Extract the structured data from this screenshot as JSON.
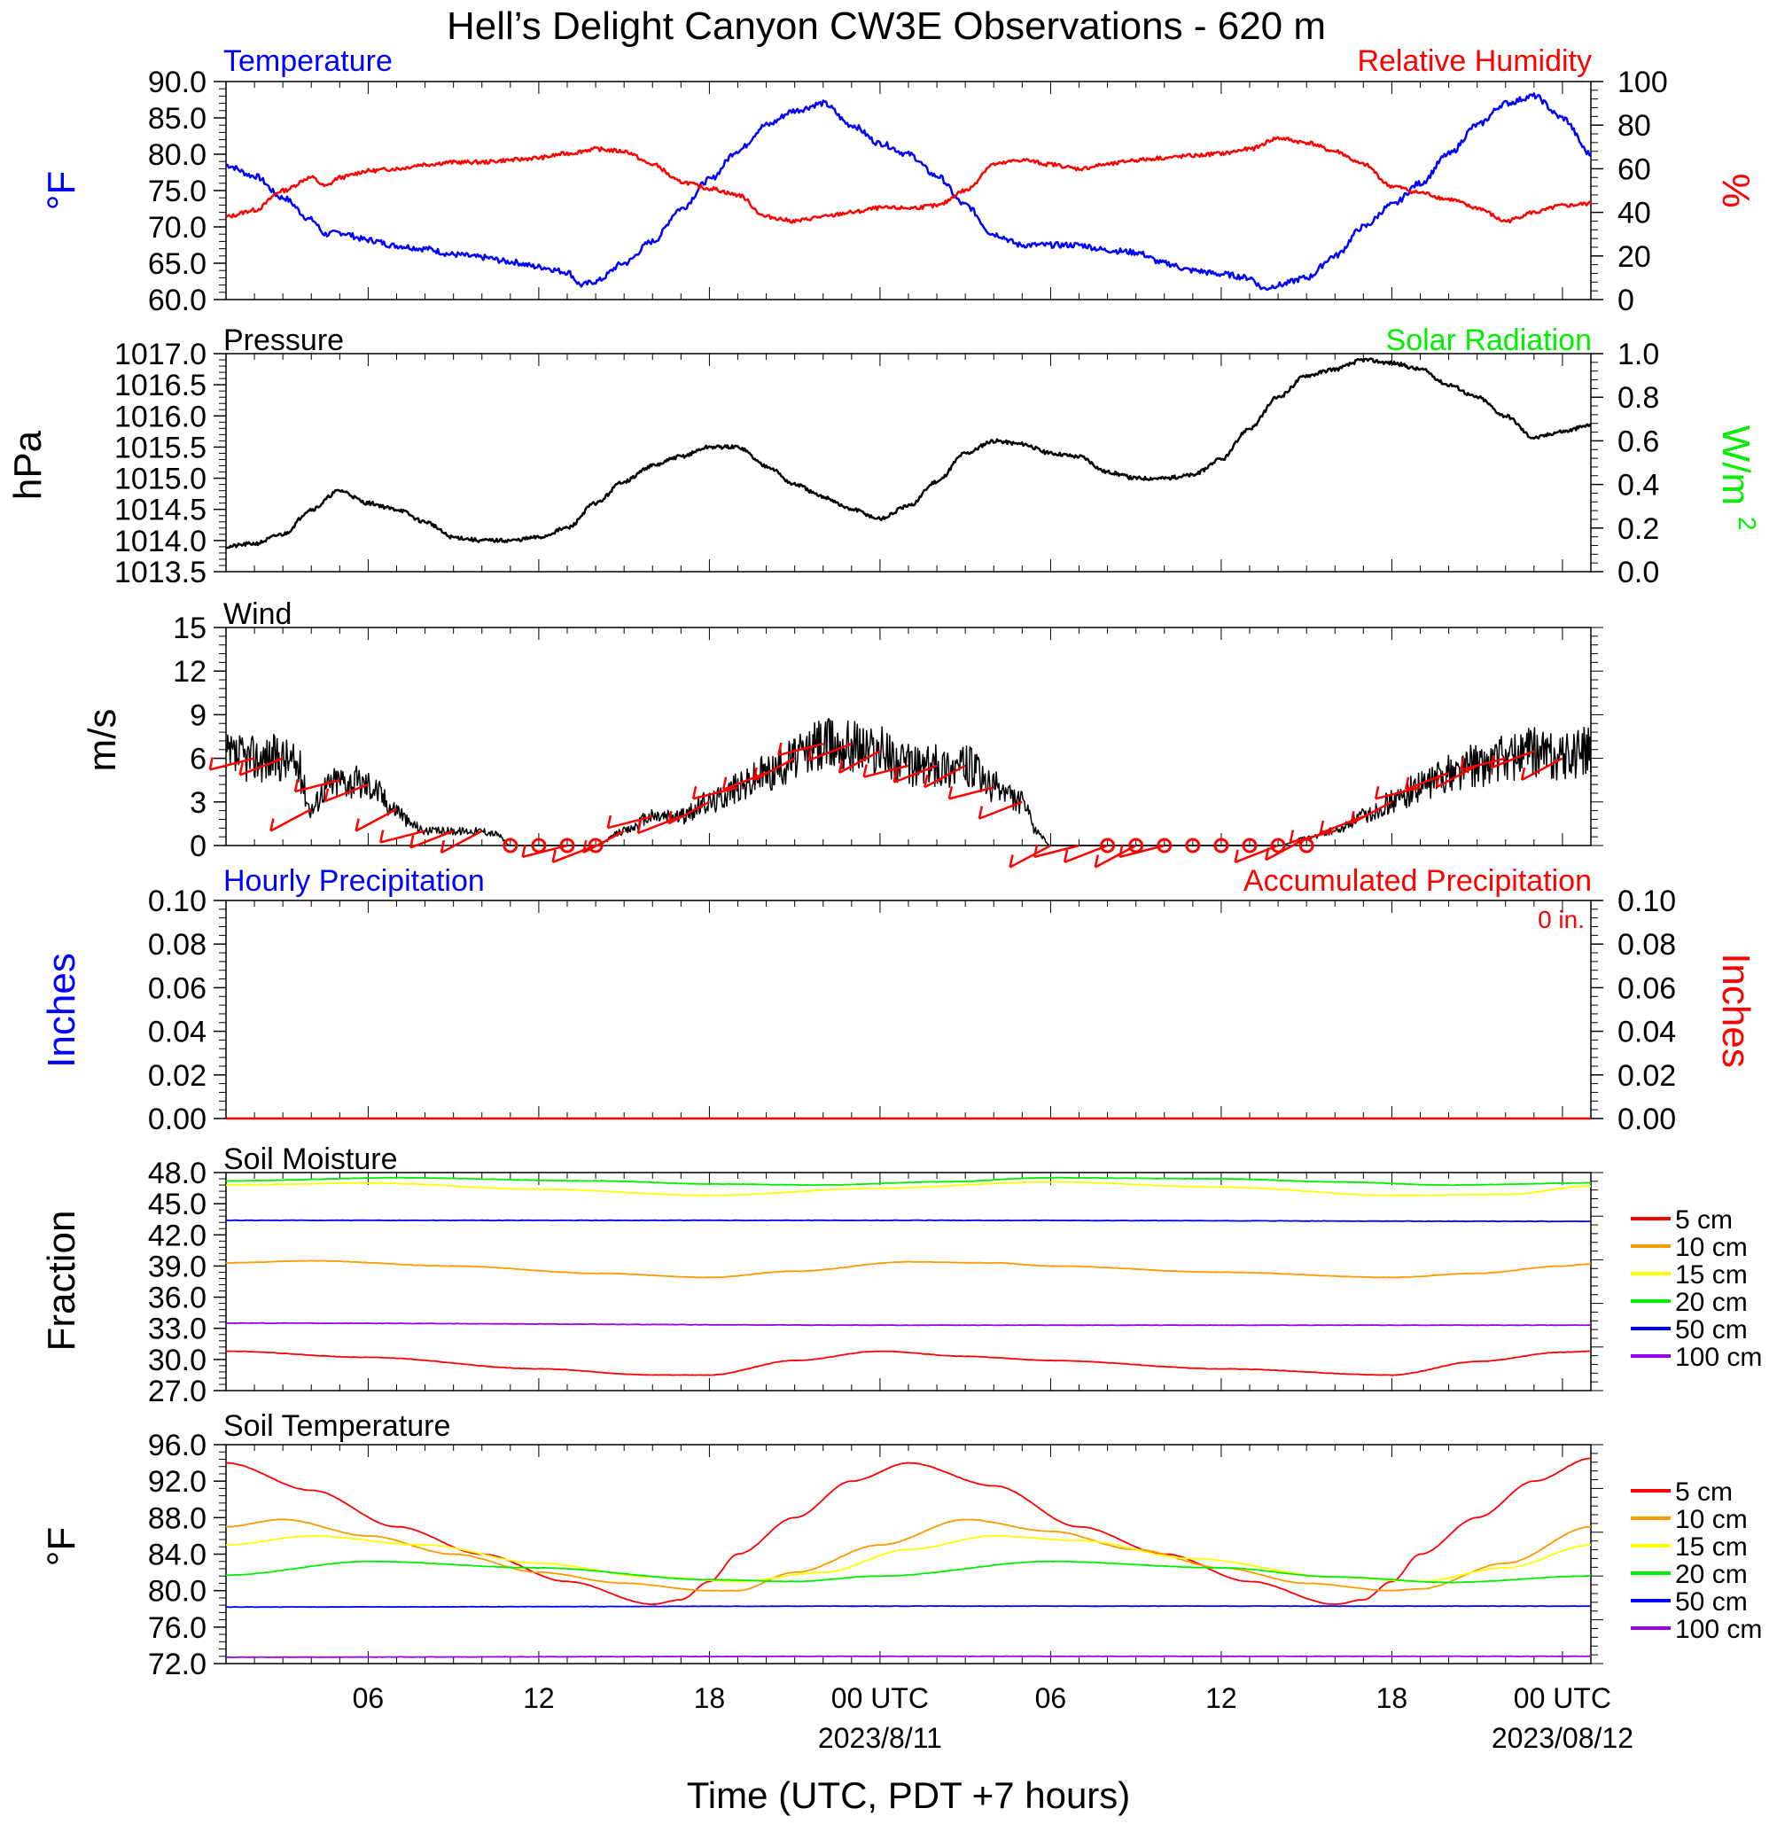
{
  "title": "Hell’s Delight Canyon CW3E Observations - 620 m",
  "xaxis": {
    "label": "Time (UTC, PDT +7 hours)",
    "ticks": [
      "06",
      "12",
      "18",
      "00 UTC",
      "06",
      "12",
      "18",
      "00 UTC"
    ],
    "tick_hours": [
      6,
      12,
      18,
      24,
      30,
      36,
      42,
      48
    ],
    "date_labels": [
      {
        "hour": 24,
        "text": "2023/8/11"
      },
      {
        "hour": 48,
        "text": "2023/08/12"
      }
    ],
    "range_hours": [
      1,
      49
    ]
  },
  "legend": {
    "labels": [
      "5 cm",
      "10 cm",
      "15 cm",
      "20 cm",
      "50 cm",
      "100 cm"
    ],
    "colors": [
      "#ff0000",
      "#ff9900",
      "#ffff00",
      "#00ee00",
      "#0000ff",
      "#9900ee"
    ]
  },
  "panels": {
    "temp": {
      "left_title": "Temperature",
      "right_title": "Relative Humidity",
      "left_unit": "°F",
      "right_unit": "%",
      "left_ticks": [
        "60.0",
        "65.0",
        "70.0",
        "75.0",
        "80.0",
        "85.0",
        "90.0"
      ],
      "right_ticks": [
        "0",
        "20",
        "40",
        "60",
        "80",
        "100"
      ]
    },
    "pressure": {
      "left_title": "Pressure",
      "right_title": "Solar Radiation",
      "left_unit": "hPa",
      "right_unit": "W/m",
      "left_ticks": [
        "1013.5",
        "1014.0",
        "1014.5",
        "1015.0",
        "1015.5",
        "1016.0",
        "1016.5",
        "1017.0"
      ],
      "right_ticks": [
        "0.0",
        "0.2",
        "0.4",
        "0.6",
        "0.8",
        "1.0"
      ]
    },
    "wind": {
      "left_title": "Wind",
      "left_unit": "m/s",
      "left_ticks": [
        "0",
        "3",
        "6",
        "9",
        "12",
        "15"
      ]
    },
    "precip": {
      "left_title": "Hourly Precipitation",
      "right_title": "Accumulated Precipitation",
      "left_unit": "Inches",
      "right_unit": "Inches",
      "accum_total": "0 in.",
      "left_ticks": [
        "0.00",
        "0.02",
        "0.04",
        "0.06",
        "0.08",
        "0.10"
      ],
      "right_ticks": [
        "0.00",
        "0.02",
        "0.04",
        "0.06",
        "0.08",
        "0.10"
      ]
    },
    "soilm": {
      "left_title": "Soil Moisture",
      "left_unit": "Fraction",
      "left_ticks": [
        "27.0",
        "30.0",
        "33.0",
        "36.0",
        "39.0",
        "42.0",
        "45.0",
        "48.0"
      ]
    },
    "soilt": {
      "left_title": "Soil Temperature",
      "left_unit": "°F",
      "left_ticks": [
        "72.0",
        "76.0",
        "80.0",
        "84.0",
        "88.0",
        "92.0",
        "96.0"
      ]
    }
  },
  "colors": {
    "temp": "#0000ff",
    "rh": "#ff0000",
    "pressure": "#000000",
    "solar": "#00ee00",
    "wind": "#000000",
    "barb": "#ff0000",
    "precip": "#ff0000"
  },
  "chart_data": [
    {
      "type": "line",
      "title": "",
      "x_unit": "hours since 2023-08-10 00 UTC",
      "ylim": [
        60,
        90
      ],
      "y2lim": [
        0,
        100
      ],
      "series": [
        {
          "name": "Temperature",
          "axis": "left",
          "x": [
            1,
            2,
            3,
            4,
            4.5,
            5,
            6,
            7,
            8,
            9,
            10,
            11,
            12,
            13,
            13.5,
            14,
            15,
            16,
            17,
            18,
            19,
            20,
            21,
            22,
            23,
            24,
            25,
            26,
            27,
            28,
            29,
            30,
            31,
            32,
            33,
            34,
            35,
            36,
            37,
            37.5,
            38,
            39,
            40,
            41,
            42,
            43,
            44,
            45,
            46,
            47,
            48,
            49
          ],
          "y": [
            78.5,
            77,
            74,
            71,
            69,
            69.2,
            68.2,
            67.4,
            67,
            66.2,
            65.8,
            65.2,
            64.5,
            63.8,
            62,
            62.5,
            65,
            68,
            72.5,
            76.5,
            80.5,
            84,
            86,
            87,
            84,
            81.5,
            80,
            77,
            73,
            69,
            67.5,
            67.5,
            67.5,
            66.8,
            66.5,
            65,
            64,
            63.5,
            63,
            61.5,
            62,
            63,
            66,
            70,
            73,
            76,
            80,
            84,
            87,
            88,
            85,
            80
          ]
        },
        {
          "name": "Relative Humidity",
          "axis": "right",
          "x": [
            1,
            2,
            3,
            4,
            4.5,
            5,
            6,
            7,
            8,
            9,
            10,
            11,
            12,
            13,
            14,
            15,
            16,
            17,
            18,
            19,
            20,
            21,
            22,
            23,
            24,
            25,
            26,
            27,
            28,
            29,
            30,
            31,
            32,
            33,
            34,
            35,
            36,
            37,
            38,
            39,
            40,
            41,
            42,
            43,
            44,
            45,
            46,
            47,
            48,
            49
          ],
          "y": [
            38,
            41,
            50,
            56,
            52,
            56,
            59,
            60,
            62,
            63,
            63,
            64,
            65,
            67,
            69,
            68,
            62,
            54,
            51,
            48,
            38,
            36,
            38,
            40,
            42,
            42,
            43,
            50,
            62,
            64,
            62,
            60,
            62,
            64,
            65,
            66,
            67,
            69,
            74,
            72,
            68,
            62,
            52,
            49,
            46,
            42,
            36,
            40,
            43,
            44
          ]
        }
      ]
    },
    {
      "type": "line",
      "title": "",
      "x_unit": "hours since 2023-08-10 00 UTC",
      "ylim": [
        1013.5,
        1017.0
      ],
      "y2lim": [
        0,
        1
      ],
      "series": [
        {
          "name": "Pressure",
          "axis": "left",
          "x": [
            1,
            2,
            3,
            4,
            5,
            6,
            7,
            8,
            9,
            10,
            11,
            12,
            13,
            14,
            15,
            16,
            17,
            18,
            19,
            20,
            21,
            22,
            23,
            24,
            25,
            26,
            27,
            28,
            29,
            30,
            31,
            32,
            33,
            34,
            35,
            36,
            37,
            38,
            39,
            40,
            41,
            42,
            43,
            44,
            45,
            46,
            47,
            48,
            49
          ],
          "y": [
            1013.9,
            1013.95,
            1014.1,
            1014.5,
            1014.8,
            1014.6,
            1014.5,
            1014.3,
            1014.05,
            1014.0,
            1014.0,
            1014.05,
            1014.2,
            1014.6,
            1014.95,
            1015.2,
            1015.35,
            1015.5,
            1015.5,
            1015.2,
            1014.9,
            1014.7,
            1014.5,
            1014.35,
            1014.55,
            1014.95,
            1015.4,
            1015.6,
            1015.55,
            1015.4,
            1015.35,
            1015.1,
            1015.0,
            1015.0,
            1015.05,
            1015.3,
            1015.8,
            1016.3,
            1016.65,
            1016.75,
            1016.9,
            1016.85,
            1016.75,
            1016.5,
            1016.3,
            1016.0,
            1015.65,
            1015.75,
            1015.85
          ]
        }
      ]
    },
    {
      "type": "line",
      "title": "",
      "x_unit": "hours since 2023-08-10 00 UTC",
      "ylim": [
        0,
        15
      ],
      "series": [
        {
          "name": "Wind",
          "x": [
            1,
            2,
            3,
            3.5,
            4,
            4.5,
            5,
            6,
            7,
            7.5,
            8,
            9,
            10,
            10.5,
            11,
            12,
            13,
            14,
            15,
            16,
            17,
            18,
            19,
            20,
            21,
            22,
            23,
            24,
            25,
            26,
            27,
            28,
            29,
            29.5,
            30,
            31,
            32,
            33,
            34,
            35,
            36,
            37,
            38,
            39,
            40,
            41,
            42,
            43,
            44,
            45,
            46,
            47,
            48,
            49
          ],
          "y": [
            6,
            6,
            6,
            5.5,
            2.5,
            4,
            4.5,
            4.2,
            2.5,
            1.5,
            1,
            1,
            1,
            0.8,
            0,
            0,
            0,
            0,
            1,
            2,
            2,
            3,
            4,
            5,
            6,
            7,
            7,
            6.5,
            5.5,
            5.5,
            5.5,
            4,
            3,
            1,
            0,
            0,
            0,
            0,
            0,
            0,
            0,
            0,
            0,
            0.5,
            1,
            2,
            3,
            4,
            5,
            5.5,
            6,
            6.5,
            6,
            6.5
          ]
        }
      ],
      "barbs_hours": [
        2,
        3,
        4,
        5,
        6,
        7,
        8,
        9,
        10,
        13,
        14,
        15,
        16,
        17,
        18,
        19,
        20,
        21,
        22,
        23,
        24,
        25,
        26,
        27,
        28,
        29,
        30,
        31,
        32,
        33,
        34,
        38,
        39,
        40,
        41,
        42,
        43,
        44,
        45,
        46,
        47,
        48
      ],
      "calm_hours": [
        11,
        12,
        13,
        14,
        32,
        33,
        34,
        35,
        36,
        37,
        38,
        39
      ]
    },
    {
      "type": "line",
      "title": "",
      "x_unit": "hours since 2023-08-10 00 UTC",
      "ylim": [
        0,
        0.1
      ],
      "y2lim": [
        0,
        0.1
      ],
      "series": [
        {
          "name": "Accumulated Precipitation",
          "axis": "right",
          "x": [
            1,
            49
          ],
          "y": [
            0,
            0
          ]
        }
      ]
    },
    {
      "type": "line",
      "title": "",
      "x_unit": "hours since 2023-08-10 00 UTC",
      "ylim": [
        27,
        48
      ],
      "series": [
        {
          "name": "5 cm",
          "x": [
            1,
            6,
            12,
            16,
            18,
            21,
            24,
            27,
            30,
            36,
            42,
            45,
            48,
            49
          ],
          "y": [
            30.8,
            30.2,
            29.1,
            28.5,
            28.5,
            29.9,
            30.8,
            30.3,
            29.9,
            29.1,
            28.5,
            29.8,
            30.7,
            30.8
          ]
        },
        {
          "name": "10 cm",
          "x": [
            1,
            4,
            9,
            14,
            18,
            21,
            25,
            28,
            30,
            36,
            42,
            45,
            48,
            49
          ],
          "y": [
            39.3,
            39.5,
            39,
            38.3,
            37.9,
            38.5,
            39.4,
            39.3,
            39,
            38.4,
            37.9,
            38.3,
            39,
            39.2
          ]
        },
        {
          "name": "15 cm",
          "x": [
            1,
            6,
            12,
            18,
            24,
            30,
            36,
            42,
            46,
            49
          ],
          "y": [
            46.8,
            47,
            46.4,
            45.8,
            46.5,
            47.1,
            46.6,
            45.8,
            45.9,
            46.7
          ]
        },
        {
          "name": "20 cm",
          "x": [
            1,
            7,
            14,
            18,
            22,
            26,
            30,
            36,
            40,
            44,
            49
          ],
          "y": [
            47.2,
            47.5,
            47.2,
            46.9,
            46.8,
            47.1,
            47.5,
            47.4,
            47.1,
            46.8,
            47
          ]
        },
        {
          "name": "50 cm",
          "x": [
            1,
            25,
            49
          ],
          "y": [
            43.4,
            43.4,
            43.3
          ]
        },
        {
          "name": "100 cm",
          "x": [
            1,
            25,
            49
          ],
          "y": [
            33.5,
            33.3,
            33.3
          ]
        }
      ]
    },
    {
      "type": "line",
      "title": "",
      "x_unit": "hours since 2023-08-10 00 UTC",
      "ylim": [
        72,
        96
      ],
      "series": [
        {
          "name": "5 cm",
          "x": [
            1,
            4,
            7,
            10,
            13,
            16,
            17,
            18,
            19,
            21,
            23,
            25,
            28,
            31,
            34,
            37,
            40,
            41,
            42,
            43,
            45,
            47,
            49
          ],
          "y": [
            94,
            91,
            87,
            84,
            81,
            78.5,
            79,
            81,
            84,
            88,
            92,
            94,
            91.5,
            87,
            84,
            81,
            78.5,
            79,
            81,
            84,
            88,
            92,
            94.5
          ]
        },
        {
          "name": "10 cm",
          "x": [
            1,
            3,
            6,
            9,
            12,
            15,
            18,
            19,
            21,
            24,
            27,
            30,
            33,
            36,
            39,
            42,
            43,
            46,
            49
          ],
          "y": [
            87,
            87.8,
            86,
            84,
            82,
            80.8,
            80,
            80,
            82,
            85,
            87.8,
            86.5,
            84.5,
            82.5,
            80.8,
            80,
            80.2,
            83,
            87
          ]
        },
        {
          "name": "15 cm",
          "x": [
            1,
            4,
            8,
            12,
            16,
            19,
            22,
            25,
            28,
            31,
            35,
            40,
            43,
            46,
            49
          ],
          "y": [
            85,
            86,
            85,
            83,
            81.5,
            81,
            82,
            84.5,
            86,
            85.5,
            83.5,
            81.5,
            81,
            82.5,
            85
          ]
        },
        {
          "name": "20 cm",
          "x": [
            1,
            6,
            12,
            18,
            21,
            24,
            30,
            36,
            40,
            44,
            49
          ],
          "y": [
            81.7,
            83.2,
            82.5,
            81.2,
            81,
            81.6,
            83.2,
            82.5,
            81.5,
            80.9,
            81.6
          ]
        },
        {
          "name": "50 cm",
          "x": [
            1,
            25,
            49
          ],
          "y": [
            78.2,
            78.3,
            78.3
          ]
        },
        {
          "name": "100 cm",
          "x": [
            1,
            25,
            49
          ],
          "y": [
            72.7,
            72.8,
            72.8
          ]
        }
      ]
    }
  ]
}
